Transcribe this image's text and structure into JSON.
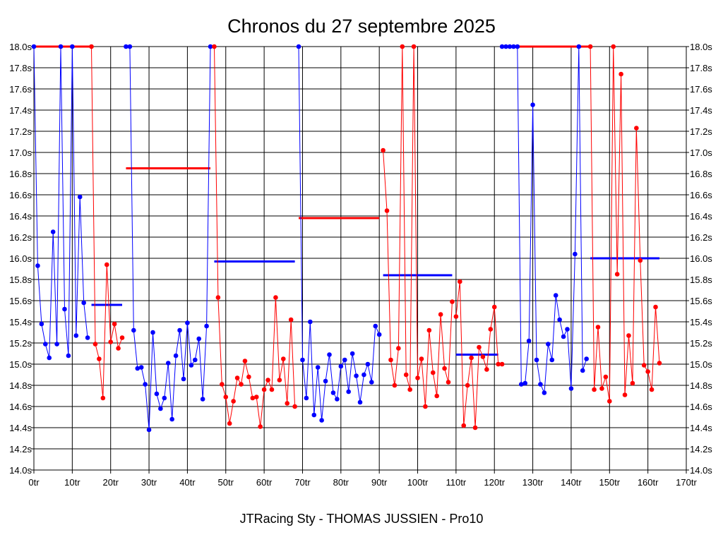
{
  "chart_data": {
    "type": "line",
    "title": "Chronos du 27 septembre 2025",
    "subtitle": "JTRacing Sty - THOMAS JUSSIEN - Pro10",
    "xlim": [
      0,
      170
    ],
    "ylim": [
      14.0,
      18.0
    ],
    "x_ticks": [
      0,
      10,
      20,
      30,
      40,
      50,
      60,
      70,
      80,
      90,
      100,
      110,
      120,
      130,
      140,
      150,
      160,
      170
    ],
    "x_tick_suffix": "tr",
    "y_ticks": [
      14.0,
      14.2,
      14.4,
      14.6,
      14.8,
      15.0,
      15.2,
      15.4,
      15.6,
      15.8,
      16.0,
      16.2,
      16.4,
      16.6,
      16.8,
      17.0,
      17.2,
      17.4,
      17.6,
      17.8,
      18.0
    ],
    "y_tick_suffix": "s",
    "grid": true,
    "series_colors": {
      "blue": "#0000ff",
      "red": "#ff0000"
    },
    "series": [
      {
        "color": "blue",
        "x": [
          0,
          1,
          2,
          3,
          4,
          5,
          6,
          7,
          8,
          9,
          10,
          11,
          12,
          13,
          14
        ],
        "y": [
          18.0,
          15.93,
          15.38,
          15.19,
          15.06,
          16.25,
          15.19,
          18.0,
          15.52,
          15.08,
          18.0,
          15.27,
          16.58,
          15.58,
          15.25
        ]
      },
      {
        "color": "red",
        "x": [
          15,
          16,
          17,
          18,
          19,
          20,
          21,
          22,
          23
        ],
        "y": [
          18.0,
          15.19,
          15.05,
          14.68,
          15.94,
          15.21,
          15.38,
          15.15,
          15.25
        ]
      },
      {
        "color": "blue",
        "x": [
          24,
          25,
          26,
          27,
          28,
          29,
          30,
          31,
          32,
          33,
          34,
          35,
          36,
          37,
          38,
          39,
          40,
          41,
          42,
          43,
          44,
          45,
          46
        ],
        "y": [
          18.0,
          18.0,
          15.32,
          14.96,
          14.97,
          14.81,
          14.38,
          15.3,
          14.72,
          14.58,
          14.68,
          15.01,
          14.48,
          15.08,
          15.32,
          14.86,
          15.39,
          14.99,
          15.04,
          15.24,
          14.67,
          15.36,
          18.0
        ]
      },
      {
        "color": "red",
        "x": [
          47,
          48,
          49,
          50,
          51,
          52,
          53,
          54,
          55,
          56,
          57,
          58,
          59,
          60,
          61,
          62,
          63,
          64,
          65,
          66,
          67,
          68
        ],
        "y": [
          18.0,
          15.63,
          14.81,
          14.69,
          14.44,
          14.65,
          14.87,
          14.81,
          15.03,
          14.88,
          14.68,
          14.69,
          14.41,
          14.76,
          14.85,
          14.76,
          15.63,
          14.85,
          15.05,
          14.63,
          15.42,
          14.6
        ]
      },
      {
        "color": "blue",
        "x": [
          69,
          70,
          71,
          72,
          73,
          74,
          75,
          76,
          77,
          78,
          79,
          80,
          81,
          82,
          83,
          84,
          85,
          86,
          87,
          88,
          89,
          90
        ],
        "y": [
          18.0,
          15.04,
          14.68,
          15.4,
          14.52,
          14.97,
          14.47,
          14.84,
          15.09,
          14.73,
          14.67,
          14.98,
          15.04,
          14.74,
          15.1,
          14.89,
          14.64,
          14.9,
          15.0,
          14.83,
          15.36,
          15.28
        ]
      },
      {
        "color": "red",
        "x": [
          91,
          92,
          93,
          94,
          95,
          96,
          97,
          98,
          99,
          100,
          101,
          102,
          103,
          104,
          105,
          106,
          107,
          108,
          109
        ],
        "y": [
          17.02,
          16.45,
          15.04,
          14.8,
          15.15,
          18.0,
          14.9,
          14.76,
          18.0,
          14.87,
          15.05,
          14.6,
          15.32,
          14.92,
          14.7,
          15.47,
          14.96,
          14.83,
          15.59
        ]
      },
      {
        "color": "red",
        "x": [
          110,
          111,
          112,
          113,
          114,
          115,
          116,
          117,
          118,
          119,
          120,
          121,
          122
        ],
        "y": [
          15.45,
          15.78,
          14.42,
          14.8,
          15.06,
          14.4,
          15.16,
          15.07,
          14.95,
          15.33,
          15.54,
          15.0,
          15.0
        ]
      },
      {
        "color": "blue",
        "x": [
          122,
          123,
          124,
          125,
          126,
          127,
          128,
          129,
          130,
          131,
          132,
          133,
          134,
          135,
          136,
          137,
          138,
          139,
          140,
          141,
          142,
          143,
          144
        ],
        "y": [
          18.0,
          18.0,
          18.0,
          18.0,
          18.0,
          14.81,
          14.82,
          15.22,
          17.45,
          15.04,
          14.81,
          14.73,
          15.19,
          15.04,
          15.65,
          15.42,
          15.26,
          15.33,
          14.77,
          16.04,
          18.0,
          14.94,
          15.05
        ]
      },
      {
        "color": "red",
        "x": [
          145,
          146,
          147,
          148,
          149,
          150,
          151,
          152,
          153,
          154,
          155,
          156,
          157,
          158,
          159,
          160,
          161,
          162,
          163
        ],
        "y": [
          18.0,
          14.76,
          15.35,
          14.77,
          14.88,
          14.65,
          18.0,
          15.85,
          17.74,
          14.71,
          15.27,
          14.82,
          17.23,
          15.98,
          14.99,
          14.93,
          14.76,
          15.54,
          15.01
        ]
      }
    ],
    "flat_segments": [
      {
        "color": "red",
        "x": [
          0,
          15
        ],
        "y": 18.0
      },
      {
        "color": "red",
        "x": [
          122,
          145
        ],
        "y": 18.0
      },
      {
        "color": "blue",
        "x": [
          15,
          23
        ],
        "y": 15.56
      },
      {
        "color": "red",
        "x": [
          24,
          46
        ],
        "y": 16.85
      },
      {
        "color": "blue",
        "x": [
          47,
          68
        ],
        "y": 15.97
      },
      {
        "color": "red",
        "x": [
          69,
          90
        ],
        "y": 16.38
      },
      {
        "color": "blue",
        "x": [
          91,
          109
        ],
        "y": 15.84
      },
      {
        "color": "blue",
        "x": [
          110,
          121
        ],
        "y": 15.09
      },
      {
        "color": "blue",
        "x": [
          145,
          163
        ],
        "y": 16.0
      }
    ]
  }
}
